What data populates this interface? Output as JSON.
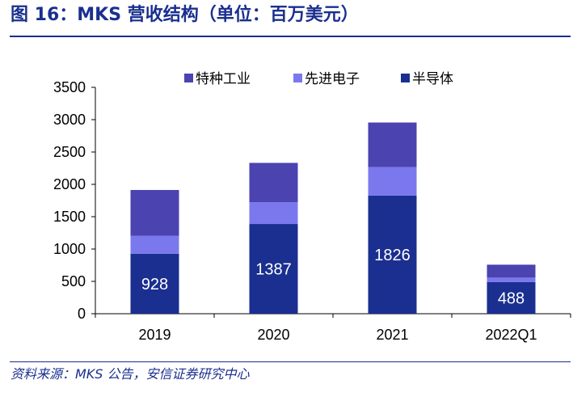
{
  "header": {
    "title": "图 16：MKS 营收结构（单位：百万美元）"
  },
  "footer": {
    "source": "资料来源：MKS 公告，安信证券研究中心"
  },
  "chart_data": {
    "type": "bar",
    "stacked": true,
    "categories": [
      "2019",
      "2020",
      "2021",
      "2022Q1"
    ],
    "series": [
      {
        "name": "半导体",
        "color": "#1a2f8f",
        "values": [
          928,
          1387,
          1826,
          488
        ],
        "labels": [
          "928",
          "1387",
          "1826",
          "488"
        ]
      },
      {
        "name": "先进电子",
        "color": "#7b78ee",
        "values": [
          275,
          335,
          440,
          70
        ]
      },
      {
        "name": "特种工业",
        "color": "#4a43b0",
        "values": [
          710,
          610,
          690,
          200
        ]
      }
    ],
    "legend_order": [
      "特种工业",
      "先进电子",
      "半导体"
    ],
    "legend_position": "top",
    "ylim": [
      0,
      3500
    ],
    "yticks": [
      0,
      500,
      1000,
      1500,
      2000,
      2500,
      3000,
      3500
    ],
    "grid": false,
    "xlabel": "",
    "ylabel": ""
  }
}
